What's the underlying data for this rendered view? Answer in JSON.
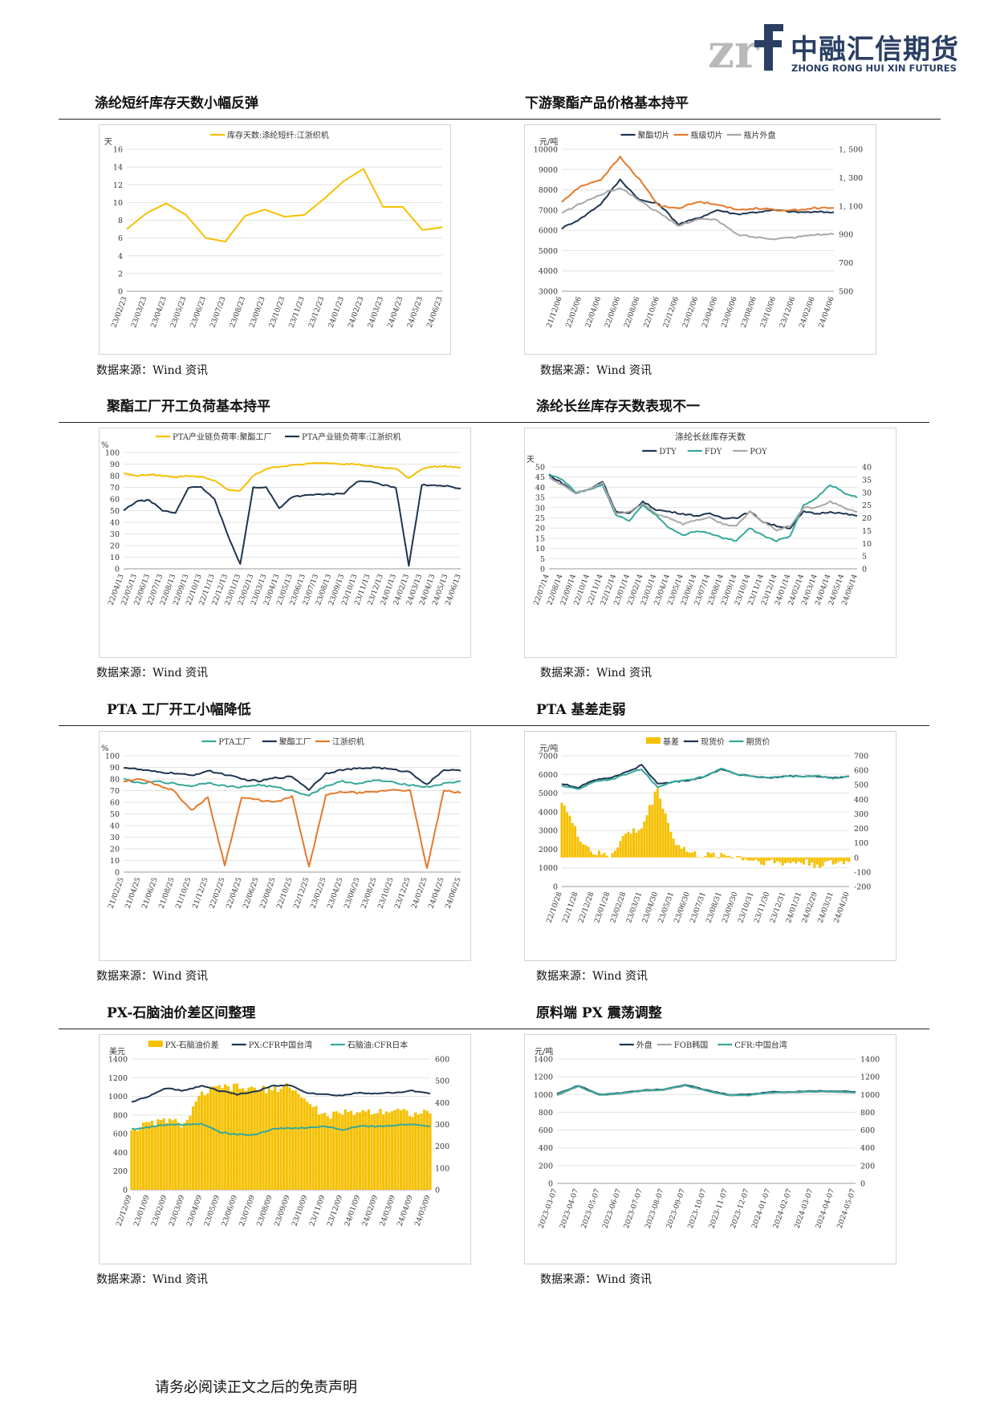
{
  "header": {
    "logo_cn": "中融汇信期货",
    "logo_en": "ZHONG RONG HUI XIN FUTURES",
    "logo_mark": "zrf"
  },
  "sections": [
    {
      "title": "涤纶短纤库存天数小幅反弹",
      "source": "数据来源：Wind 资讯"
    },
    {
      "title": "下游聚酯产品价格基本持平",
      "source": "数据来源：Wind 资讯"
    },
    {
      "title": "聚酯工厂开工负荷基本持平",
      "source": "数据来源：Wind 资讯"
    },
    {
      "title": "涤纶长丝库存天数表现不一",
      "source": "数据来源：Wind 资讯"
    },
    {
      "title": "PTA 工厂开工小幅降低",
      "source": "数据来源：Wind 资讯"
    },
    {
      "title": "PTA 基差走弱",
      "source": "数据来源：Wind 资讯"
    },
    {
      "title": "PX-石脑油价差区间整理",
      "source": "数据来源：Wind 资讯"
    },
    {
      "title": "原料端 PX 震荡调整",
      "source": "数据来源：Wind 资讯"
    }
  ],
  "footer": {
    "disclaimer": "请务必阅读正文之后的免责声明"
  },
  "chart_data": [
    {
      "type": "line",
      "title": "",
      "ylabel": "天",
      "ylim": [
        0,
        16
      ],
      "yticks": [
        0,
        2,
        4,
        6,
        8,
        10,
        12,
        14,
        16
      ],
      "x": [
        "23/02/23",
        "23/03/23",
        "23/04/23",
        "23/05/23",
        "23/06/23",
        "23/07/23",
        "23/08/23",
        "23/09/23",
        "23/10/23",
        "23/11/23",
        "23/12/23",
        "24/01/23",
        "24/02/23",
        "24/03/23",
        "24/04/23",
        "24/05/23",
        "24/06/23"
      ],
      "series": [
        {
          "name": "库存天数:涤纶短纤:江浙织机",
          "color": "#f5c000",
          "values": [
            7,
            8.8,
            9.9,
            8.6,
            6,
            5.6,
            8.5,
            9.2,
            8.4,
            8.6,
            10.4,
            12.4,
            13.8,
            9.5,
            9.5,
            6.9,
            7.2
          ]
        }
      ]
    },
    {
      "type": "line",
      "title": "",
      "ylabel": "元/吨",
      "ylim": [
        3000,
        10000
      ],
      "yticks": [
        3000,
        4000,
        5000,
        6000,
        7000,
        8000,
        9000,
        10000
      ],
      "y2lim": [
        500,
        1500
      ],
      "y2ticks": [
        "500",
        "700",
        "900",
        "1, 100",
        "1, 300",
        "1, 500"
      ],
      "x": [
        "21/12/06",
        "22/02/06",
        "22/04/06",
        "22/06/06",
        "22/08/06",
        "22/10/06",
        "22/12/06",
        "23/02/06",
        "23/04/06",
        "23/06/06",
        "23/08/06",
        "23/10/06",
        "23/12/06",
        "24/02/06",
        "24/04/06"
      ],
      "series": [
        {
          "name": "聚酯切片",
          "color": "#1f3550",
          "values": [
            6100,
            6600,
            7300,
            8500,
            7500,
            7300,
            6300,
            6600,
            7000,
            6800,
            6900,
            7000,
            6900,
            6900,
            6900
          ]
        },
        {
          "name": "瓶级切片",
          "color": "#e57a2c",
          "values": [
            7400,
            8200,
            8500,
            9600,
            8500,
            7200,
            7100,
            7400,
            7300,
            7000,
            7100,
            7000,
            7000,
            7100,
            7100
          ]
        },
        {
          "name": "瓶片外盘",
          "color": "#a8a8a8",
          "axis": "right",
          "values": [
            1050,
            1120,
            1180,
            1230,
            1140,
            1050,
            960,
            1010,
            1000,
            900,
            880,
            870,
            880,
            900,
            900
          ]
        }
      ]
    },
    {
      "type": "line",
      "title": "",
      "ylabel": "%",
      "ylim": [
        0,
        100
      ],
      "yticks": [
        0,
        10,
        20,
        30,
        40,
        50,
        60,
        70,
        80,
        90,
        100
      ],
      "x": [
        "22/04/13",
        "22/05/13",
        "22/06/13",
        "22/07/13",
        "22/08/13",
        "22/09/13",
        "22/10/13",
        "22/11/13",
        "22/12/13",
        "23/01/13",
        "23/02/13",
        "23/03/13",
        "23/04/13",
        "23/05/13",
        "23/06/13",
        "23/07/13",
        "23/08/13",
        "23/09/13",
        "23/10/13",
        "23/11/13",
        "23/12/13",
        "24/01/13",
        "24/02/13",
        "24/03/13",
        "24/04/13",
        "24/05/13",
        "24/06/13"
      ],
      "series": [
        {
          "name": "PTA产业链负荷率:聚酯工厂",
          "color": "#f5c000",
          "values": [
            82,
            80,
            81,
            80,
            79,
            80,
            79,
            76,
            68,
            67,
            80,
            86,
            88,
            89,
            90,
            91,
            91,
            90,
            90,
            88,
            87,
            86,
            78,
            86,
            88,
            88,
            87
          ]
        },
        {
          "name": "PTA产业链负荷率:江浙织机",
          "color": "#1f3550",
          "values": [
            50,
            58,
            59,
            50,
            48,
            70,
            70,
            60,
            30,
            4,
            70,
            70,
            52,
            62,
            63,
            64,
            64,
            65,
            75,
            75,
            72,
            70,
            3,
            72,
            72,
            71,
            69
          ]
        }
      ]
    },
    {
      "type": "line",
      "title": "涤纶长丝库存天数",
      "ylabel": "天",
      "ylim": [
        0,
        50
      ],
      "yticks": [
        0,
        5,
        10,
        15,
        20,
        25,
        30,
        35,
        40,
        45,
        50
      ],
      "y2lim": [
        0,
        40
      ],
      "y2ticks": [
        0,
        5,
        10,
        15,
        20,
        25,
        30,
        35,
        40
      ],
      "x": [
        "22/07/14",
        "22/08/14",
        "22/09/14",
        "22/10/14",
        "22/11/14",
        "22/12/14",
        "23/01/14",
        "23/02/14",
        "23/03/14",
        "23/04/14",
        "23/05/14",
        "23/06/14",
        "23/07/14",
        "23/08/14",
        "23/09/14",
        "23/10/14",
        "23/11/14",
        "23/12/14",
        "24/01/14",
        "24/02/14",
        "24/03/14",
        "24/04/14",
        "24/05/14",
        "24/06/14"
      ],
      "series": [
        {
          "name": "DTY",
          "color": "#1f3550",
          "values": [
            46,
            42,
            37,
            39,
            43,
            28,
            27,
            33,
            29,
            28,
            27,
            26,
            27,
            25,
            25,
            28,
            23,
            21,
            20,
            28,
            27,
            28,
            27,
            26
          ]
        },
        {
          "name": "FDY",
          "color": "#36a89a",
          "axis": "right",
          "values": [
            37,
            35,
            30,
            31,
            33,
            21,
            19,
            25,
            21,
            16,
            13,
            15,
            14,
            12,
            11,
            16,
            13,
            11,
            13,
            25,
            28,
            33,
            30,
            28
          ]
        },
        {
          "name": "POY",
          "color": "#a8a8a8",
          "values": [
            45,
            41,
            37,
            39,
            42,
            27,
            28,
            32,
            27,
            25,
            22,
            24,
            25,
            22,
            21,
            28,
            23,
            19,
            21,
            30,
            30,
            33,
            30,
            28
          ]
        }
      ]
    },
    {
      "type": "line",
      "title": "",
      "ylabel": "%",
      "ylim": [
        0,
        100
      ],
      "yticks": [
        0,
        10,
        20,
        30,
        40,
        50,
        60,
        70,
        80,
        90,
        100
      ],
      "x": [
        "21/02/25",
        "21/04/25",
        "21/06/25",
        "21/08/25",
        "21/10/25",
        "21/12/25",
        "22/02/25",
        "22/04/25",
        "22/06/25",
        "22/08/25",
        "22/10/25",
        "22/12/25",
        "23/02/25",
        "23/04/25",
        "23/06/25",
        "23/08/25",
        "23/10/25",
        "23/12/25",
        "24/02/25",
        "24/04/25",
        "24/06/25"
      ],
      "series": [
        {
          "name": "PTA工厂",
          "color": "#36a89a",
          "values": [
            80,
            76,
            78,
            76,
            74,
            77,
            74,
            73,
            75,
            73,
            70,
            66,
            74,
            78,
            76,
            79,
            77,
            75,
            73,
            76,
            78
          ]
        },
        {
          "name": "聚酯工厂",
          "color": "#1f3550",
          "values": [
            90,
            88,
            86,
            85,
            83,
            87,
            84,
            80,
            78,
            81,
            82,
            71,
            85,
            88,
            89,
            90,
            88,
            86,
            75,
            88,
            87
          ]
        },
        {
          "name": "江浙织机",
          "color": "#e57a2c",
          "values": [
            78,
            80,
            75,
            70,
            53,
            64,
            6,
            64,
            62,
            60,
            65,
            4,
            66,
            69,
            68,
            69,
            71,
            70,
            3,
            70,
            68
          ]
        }
      ]
    },
    {
      "type": "bar+line",
      "title": "",
      "ylabel": "元/吨",
      "ylim": [
        0,
        7000
      ],
      "yticks": [
        0,
        1000,
        2000,
        3000,
        4000,
        5000,
        6000,
        7000
      ],
      "y2lim": [
        -200,
        700
      ],
      "y2ticks": [
        -200,
        -100,
        0,
        100,
        200,
        300,
        400,
        500,
        600,
        700
      ],
      "x": [
        "22/10/28",
        "22/11/28",
        "22/12/28",
        "23/01/28",
        "23/02/28",
        "23/03/31",
        "23/04/30",
        "23/05/31",
        "23/06/30",
        "23/07/31",
        "23/08/31",
        "23/09/30",
        "23/10/31",
        "23/11/30",
        "23/12/31",
        "24/01/31",
        "24/02/29",
        "24/03/31",
        "24/04/30"
      ],
      "series": [
        {
          "name": "基差",
          "type": "bar",
          "axis": "right",
          "color": "#f5c000",
          "values": [
            400,
            150,
            30,
            10,
            160,
            200,
            480,
            120,
            30,
            10,
            20,
            5,
            -20,
            -30,
            -40,
            -30,
            -50,
            -40,
            -30
          ]
        },
        {
          "name": "现货价",
          "color": "#1f3550",
          "values": [
            5500,
            5300,
            5700,
            5800,
            6100,
            6500,
            5500,
            5600,
            5700,
            5900,
            6300,
            6000,
            5900,
            5800,
            5900,
            5900,
            5900,
            5800,
            5900
          ]
        },
        {
          "name": "期货价",
          "color": "#36a89a",
          "values": [
            5400,
            5200,
            5600,
            5700,
            6000,
            6300,
            5300,
            5600,
            5700,
            5900,
            6300,
            6000,
            5900,
            5800,
            5900,
            5900,
            5900,
            5800,
            5900
          ]
        }
      ]
    },
    {
      "type": "bar+line",
      "title": "",
      "ylabel": "美元",
      "ylim": [
        0,
        1400
      ],
      "yticks": [
        0,
        200,
        400,
        600,
        800,
        1000,
        1200,
        1400
      ],
      "y2lim": [
        0,
        600
      ],
      "y2ticks": [
        0,
        100,
        200,
        300,
        400,
        500,
        600
      ],
      "x": [
        "22/12/09",
        "23/01/09",
        "23/02/09",
        "23/03/09",
        "23/04/09",
        "23/05/09",
        "23/06/09",
        "23/07/09",
        "23/08/09",
        "23/09/09",
        "23/10/09",
        "23/11/09",
        "23/12/09",
        "24/01/09",
        "24/02/09",
        "24/03/09",
        "24/04/09",
        "24/05/09"
      ],
      "series": [
        {
          "name": "PX-石脑油价差",
          "type": "bar",
          "axis": "right",
          "color": "#f5c000",
          "values": [
            280,
            300,
            320,
            300,
            440,
            470,
            470,
            460,
            460,
            480,
            400,
            340,
            350,
            360,
            360,
            370,
            350,
            350
          ]
        },
        {
          "name": "PX:CFR中国台湾",
          "color": "#1f3550",
          "values": [
            940,
            1000,
            1090,
            1060,
            1120,
            1060,
            1020,
            1050,
            1110,
            1120,
            1040,
            1020,
            1010,
            1040,
            1030,
            1040,
            1060,
            1030
          ]
        },
        {
          "name": "石脑油:CFR日本",
          "color": "#36a89a",
          "values": [
            650,
            670,
            700,
            700,
            710,
            620,
            590,
            590,
            650,
            660,
            660,
            680,
            640,
            680,
            680,
            690,
            700,
            680
          ]
        }
      ]
    },
    {
      "type": "line",
      "title": "",
      "ylabel": "元/吨",
      "ylim": [
        0,
        1400
      ],
      "yticks": [
        0,
        200,
        400,
        600,
        800,
        1000,
        1200,
        1400
      ],
      "y2lim": [
        0,
        1400
      ],
      "y2ticks": [
        0,
        200,
        400,
        600,
        800,
        1000,
        1200,
        1400
      ],
      "x": [
        "2023-03-07",
        "2023-04-07",
        "2023-05-07",
        "2023-06-07",
        "2023-07-07",
        "2023-08-07",
        "2023-09-07",
        "2023-10-07",
        "2023-11-07",
        "2023-12-07",
        "2024-01-07",
        "2024-02-07",
        "2024-03-07",
        "2024-04-07",
        "2024-05-07"
      ],
      "series": [
        {
          "name": "外盘",
          "color": "#1f3550",
          "values": [
            1010,
            1100,
            1000,
            1020,
            1050,
            1060,
            1110,
            1050,
            1000,
            1000,
            1030,
            1030,
            1040,
            1040,
            1030
          ]
        },
        {
          "name": "FOB韩国",
          "color": "#a8a8a8",
          "values": [
            990,
            1090,
            990,
            1010,
            1040,
            1050,
            1100,
            1040,
            990,
            990,
            1020,
            1020,
            1030,
            1030,
            1020
          ]
        },
        {
          "name": "CFR:中国台湾",
          "color": "#36a89a",
          "values": [
            1005,
            1095,
            995,
            1015,
            1045,
            1055,
            1105,
            1045,
            995,
            995,
            1025,
            1025,
            1035,
            1035,
            1025
          ]
        }
      ]
    }
  ]
}
